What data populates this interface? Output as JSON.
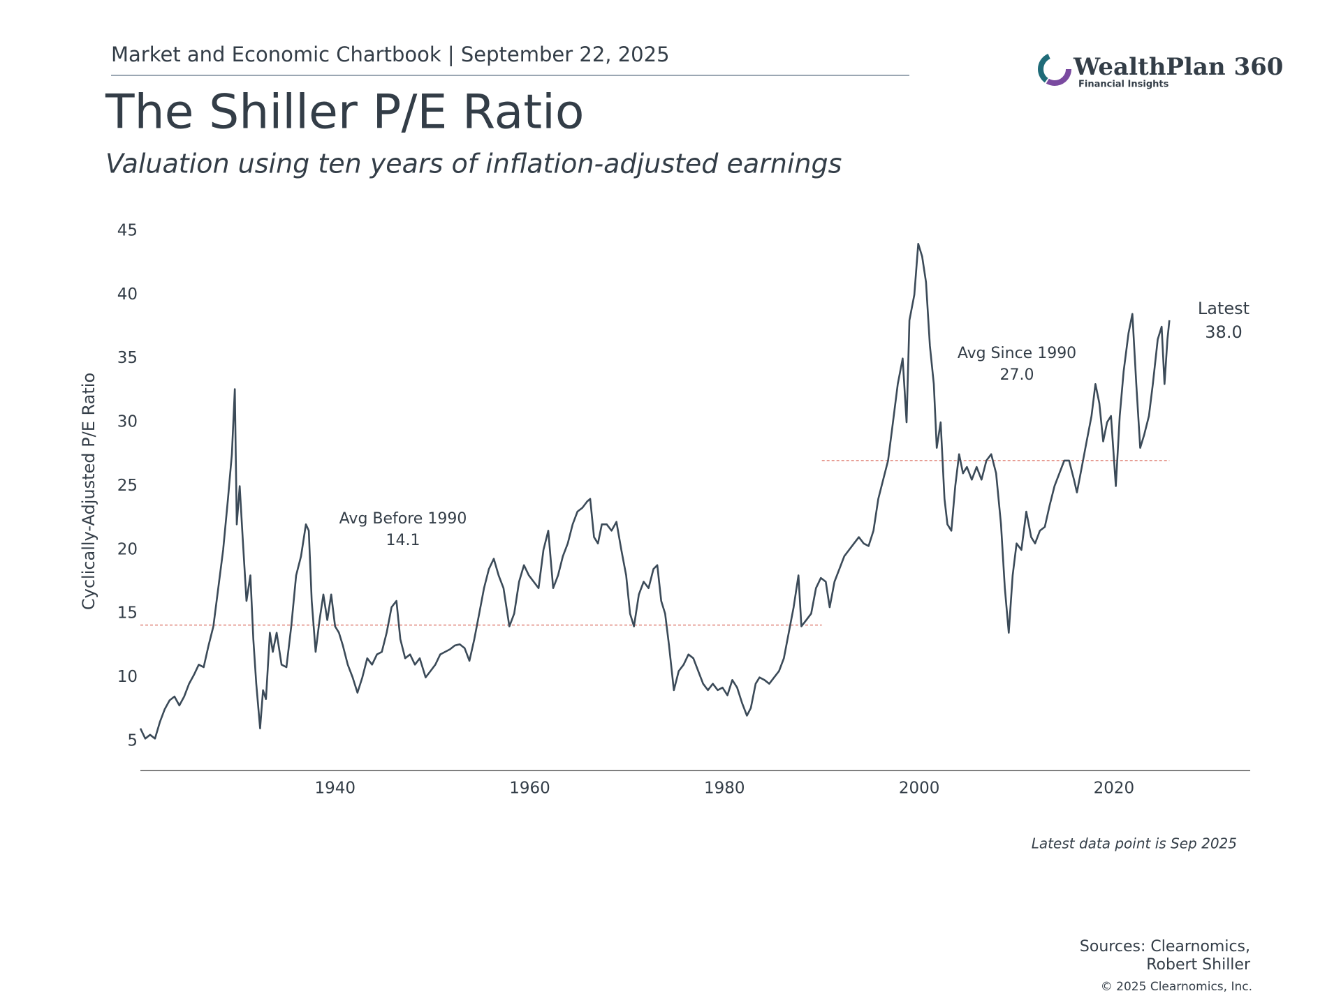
{
  "header": {
    "text": "Market and Economic Chartbook | September 22, 2025"
  },
  "logo": {
    "name": "WealthPlan 360",
    "tagline": "Financial Insights"
  },
  "chart_data": {
    "type": "line",
    "title": "The Shiller P/E Ratio",
    "subtitle": "Valuation using ten years of inflation-adjusted earnings",
    "y_label": "Cyclically-Adjusted P/E Ratio",
    "color": "#3b4a58",
    "x": [
      1920,
      1920.5,
      1921,
      1921.5,
      1922,
      1922.5,
      1923,
      1923.5,
      1924,
      1924.5,
      1925,
      1925.5,
      1926,
      1926.5,
      1927,
      1927.5,
      1928,
      1928.5,
      1929,
      1929.4,
      1929.7,
      1929.9,
      1930.2,
      1930.5,
      1930.9,
      1931.3,
      1931.6,
      1931.9,
      1932.3,
      1932.6,
      1932.9,
      1933.3,
      1933.6,
      1934,
      1934.5,
      1935,
      1935.5,
      1936,
      1936.5,
      1937,
      1937.3,
      1937.6,
      1938,
      1938.4,
      1938.8,
      1939.2,
      1939.6,
      1940,
      1940.4,
      1940.8,
      1941.3,
      1941.8,
      1942.3,
      1942.8,
      1943.3,
      1943.8,
      1944.3,
      1944.8,
      1945.3,
      1945.8,
      1946.3,
      1946.7,
      1947.2,
      1947.7,
      1948.2,
      1948.7,
      1949.3,
      1949.8,
      1950.3,
      1950.8,
      1951.3,
      1951.8,
      1952.3,
      1952.8,
      1953.3,
      1953.8,
      1954.3,
      1954.8,
      1955.3,
      1955.8,
      1956.3,
      1956.8,
      1957.3,
      1957.9,
      1958.4,
      1958.9,
      1959.4,
      1959.9,
      1960.4,
      1960.9,
      1961.4,
      1961.9,
      1962.4,
      1962.9,
      1963.4,
      1963.9,
      1964.4,
      1964.9,
      1965.4,
      1965.9,
      1966.2,
      1966.6,
      1967,
      1967.4,
      1967.9,
      1968.4,
      1968.9,
      1969.4,
      1969.9,
      1970.3,
      1970.7,
      1971.2,
      1971.7,
      1972.2,
      1972.7,
      1973.1,
      1973.5,
      1973.9,
      1974.3,
      1974.8,
      1975.3,
      1975.8,
      1976.3,
      1976.8,
      1977.3,
      1977.8,
      1978.3,
      1978.8,
      1979.3,
      1979.8,
      1980.3,
      1980.8,
      1981.3,
      1981.8,
      1982.3,
      1982.7,
      1983.2,
      1983.6,
      1984.1,
      1984.6,
      1985.1,
      1985.6,
      1986.1,
      1986.6,
      1987.1,
      1987.6,
      1987.9,
      1988.4,
      1988.9,
      1989.4,
      1989.9,
      1990.4,
      1990.8,
      1991.3,
      1991.8,
      1992.3,
      1992.8,
      1993.3,
      1993.8,
      1994.3,
      1994.8,
      1995.3,
      1995.8,
      1996.3,
      1996.8,
      1997.3,
      1997.8,
      1998.3,
      1998.7,
      1999,
      1999.5,
      1999.9,
      2000.3,
      2000.7,
      2001.1,
      2001.5,
      2001.8,
      2002.2,
      2002.6,
      2002.9,
      2003.3,
      2003.7,
      2004.1,
      2004.5,
      2004.9,
      2005.4,
      2005.9,
      2006.4,
      2006.9,
      2007.4,
      2007.9,
      2008.4,
      2008.8,
      2009.2,
      2009.6,
      2010,
      2010.5,
      2011,
      2011.5,
      2011.9,
      2012.4,
      2012.9,
      2013.4,
      2013.9,
      2014.4,
      2014.9,
      2015.4,
      2015.9,
      2016.2,
      2016.7,
      2017.2,
      2017.7,
      2018.1,
      2018.5,
      2018.9,
      2019.3,
      2019.7,
      2020.2,
      2020.6,
      2021,
      2021.5,
      2021.9,
      2022.3,
      2022.7,
      2023.1,
      2023.6,
      2024,
      2024.5,
      2024.9,
      2025.2,
      2025.5,
      2025.7
    ],
    "values": [
      6,
      5.2,
      5.5,
      5.2,
      6.5,
      7.5,
      8.2,
      8.5,
      7.8,
      8.5,
      9.5,
      10.2,
      11,
      10.8,
      12.5,
      14,
      17,
      20,
      24,
      27.5,
      32.6,
      22,
      25,
      21,
      16,
      18,
      13,
      9.5,
      6,
      9,
      8.3,
      13.5,
      12,
      13.5,
      11,
      10.8,
      14,
      18,
      19.5,
      22,
      21.5,
      16,
      12,
      14.5,
      16.5,
      14.5,
      16.5,
      14,
      13.5,
      12.5,
      11,
      10,
      8.8,
      10,
      11.5,
      11,
      11.8,
      12,
      13.5,
      15.5,
      16,
      13,
      11.5,
      11.8,
      11,
      11.5,
      10,
      10.5,
      11,
      11.8,
      12,
      12.2,
      12.5,
      12.6,
      12.3,
      11.3,
      13,
      15,
      17,
      18.5,
      19.3,
      18,
      17,
      14,
      15,
      17.5,
      18.8,
      18,
      17.5,
      17,
      20,
      21.5,
      17,
      18,
      19.5,
      20.5,
      22,
      23,
      23.3,
      23.8,
      24,
      21,
      20.5,
      22,
      22,
      21.5,
      22.2,
      20,
      18,
      15,
      14,
      16.5,
      17.5,
      17,
      18.5,
      18.8,
      16,
      15,
      12.5,
      9,
      10.5,
      11,
      11.8,
      11.5,
      10.5,
      9.5,
      9,
      9.5,
      9,
      9.2,
      8.6,
      9.8,
      9.2,
      8,
      7,
      7.6,
      9.5,
      10,
      9.8,
      9.5,
      10,
      10.5,
      11.5,
      13.5,
      15.5,
      18,
      14,
      14.5,
      15,
      17,
      17.8,
      17.5,
      15.5,
      17.5,
      18.5,
      19.5,
      20,
      20.5,
      21,
      20.5,
      20.3,
      21.5,
      24,
      25.5,
      27,
      30,
      33,
      35,
      30,
      38,
      40,
      44,
      43,
      41,
      36,
      33,
      28,
      30,
      24,
      22,
      21.5,
      25,
      27.5,
      26,
      26.5,
      25.5,
      26.5,
      25.5,
      27,
      27.5,
      26,
      22,
      17,
      13.5,
      18,
      20.5,
      20,
      23,
      21,
      20.5,
      21.5,
      21.8,
      23.5,
      25,
      26,
      27,
      27,
      25.5,
      24.5,
      26.5,
      28.5,
      30.5,
      33,
      31.5,
      28.5,
      30,
      30.5,
      25,
      30.5,
      34,
      37,
      38.5,
      33,
      28,
      29,
      30.5,
      33,
      36.5,
      37.5,
      33,
      36.5,
      38
    ],
    "xlim": [
      1920,
      2034
    ],
    "xticks": [
      1940,
      1960,
      1980,
      2000,
      2020
    ],
    "ylim": [
      2.7,
      45
    ],
    "yticks": [
      5,
      10,
      15,
      20,
      25,
      30,
      35,
      40,
      45
    ],
    "grid": false,
    "reference_lines": [
      {
        "label": "Avg Before 1990",
        "value": 14.1,
        "start": 1920,
        "end": 1990,
        "color": "#e0857a"
      },
      {
        "label": "Avg Since 1990",
        "value": 27,
        "value_label": "27.0",
        "start": 1990,
        "end": 2025.7,
        "color": "#e0857a"
      }
    ],
    "latest": {
      "label": "Latest",
      "value": 38,
      "value_label": "38.0"
    },
    "note": "Latest data point is Sep 2025"
  },
  "footer": {
    "sources": [
      "Sources: Clearnomics,",
      "Robert Shiller"
    ],
    "copyright": "© 2025 Clearnomics, Inc."
  }
}
